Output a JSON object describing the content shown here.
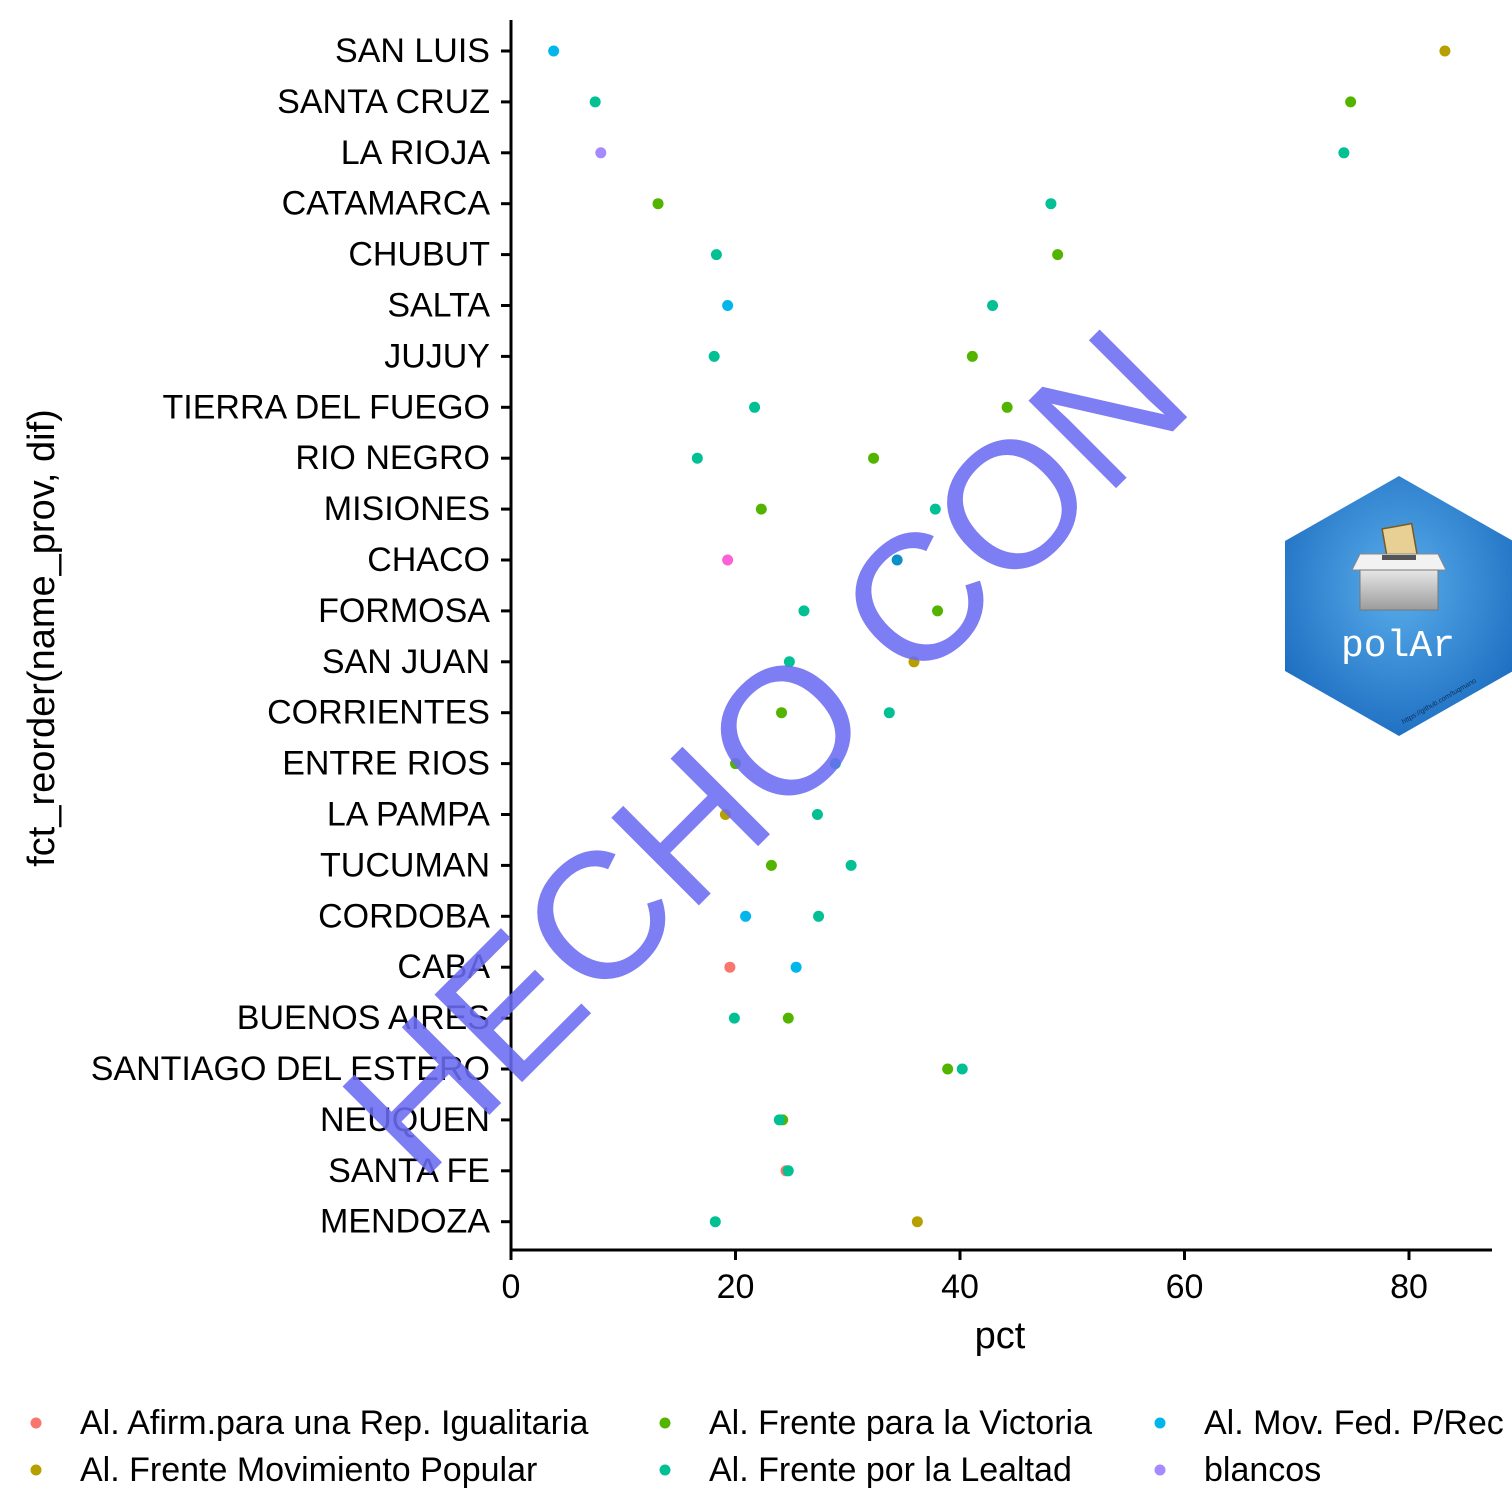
{
  "chart_data": {
    "type": "scatter",
    "title": "",
    "xlabel": "pct",
    "ylabel": "fct_reorder(name_prov, dif)",
    "xlim": [
      0,
      87
    ],
    "xticks": [
      0,
      20,
      40,
      60,
      80
    ],
    "grid": false,
    "legend_position": "bottom",
    "categories": [
      "SAN LUIS",
      "SANTA CRUZ",
      "LA RIOJA",
      "CATAMARCA",
      "CHUBUT",
      "SALTA",
      "JUJUY",
      "TIERRA DEL FUEGO",
      "RIO NEGRO",
      "MISIONES",
      "CHACO",
      "FORMOSA",
      "SAN JUAN",
      "CORRIENTES",
      "ENTRE RIOS",
      "LA PAMPA",
      "TUCUMAN",
      "CORDOBA",
      "CABA",
      "BUENOS AIRES",
      "SANTIAGO DEL ESTERO",
      "NEUQUEN",
      "SANTA FE",
      "MENDOZA"
    ],
    "series": [
      {
        "name": "Al. Afirm.para una Rep. Igualitaria",
        "color": "#F8766D",
        "points": [
          {
            "y": "CABA",
            "x": 19.5
          },
          {
            "y": "SANTA FE",
            "x": 24.5
          }
        ]
      },
      {
        "name": "Al. Frente Movimiento Popular",
        "color": "#B79F00",
        "points": [
          {
            "y": "SAN LUIS",
            "x": 83.2
          },
          {
            "y": "SAN JUAN",
            "x": 35.9
          },
          {
            "y": "LA PAMPA",
            "x": 19.1
          },
          {
            "y": "MENDOZA",
            "x": 36.2
          }
        ]
      },
      {
        "name": "Al. Frente para la Victoria",
        "color": "#53B400",
        "points": [
          {
            "y": "SANTA CRUZ",
            "x": 74.8
          },
          {
            "y": "CATAMARCA",
            "x": 13.1
          },
          {
            "y": "CHUBUT",
            "x": 48.7
          },
          {
            "y": "JUJUY",
            "x": 41.1
          },
          {
            "y": "TIERRA DEL FUEGO",
            "x": 44.2
          },
          {
            "y": "RIO NEGRO",
            "x": 32.3
          },
          {
            "y": "MISIONES",
            "x": 22.3
          },
          {
            "y": "FORMOSA",
            "x": 38.0
          },
          {
            "y": "CORRIENTES",
            "x": 24.1
          },
          {
            "y": "ENTRE RIOS",
            "x": 20.0
          },
          {
            "y": "TUCUMAN",
            "x": 23.2
          },
          {
            "y": "BUENOS AIRES",
            "x": 24.7
          },
          {
            "y": "SANTIAGO DEL ESTERO",
            "x": 38.9
          },
          {
            "y": "NEUQUEN",
            "x": 24.2
          }
        ]
      },
      {
        "name": "Al. Frente por la Lealtad",
        "color": "#00C094",
        "points": [
          {
            "y": "SANTA CRUZ",
            "x": 7.5
          },
          {
            "y": "LA RIOJA",
            "x": 74.2
          },
          {
            "y": "CATAMARCA",
            "x": 48.1
          },
          {
            "y": "CHUBUT",
            "x": 18.3
          },
          {
            "y": "SALTA",
            "x": 42.9
          },
          {
            "y": "JUJUY",
            "x": 18.1
          },
          {
            "y": "TIERRA DEL FUEGO",
            "x": 21.7
          },
          {
            "y": "RIO NEGRO",
            "x": 16.6
          },
          {
            "y": "MISIONES",
            "x": 37.8
          },
          {
            "y": "FORMOSA",
            "x": 26.1
          },
          {
            "y": "SAN JUAN",
            "x": 24.8
          },
          {
            "y": "CORRIENTES",
            "x": 33.7
          },
          {
            "y": "ENTRE RIOS",
            "x": 28.9
          },
          {
            "y": "LA PAMPA",
            "x": 27.3
          },
          {
            "y": "TUCUMAN",
            "x": 30.3
          },
          {
            "y": "CORDOBA",
            "x": 27.4
          },
          {
            "y": "BUENOS AIRES",
            "x": 19.9
          },
          {
            "y": "SANTIAGO DEL ESTERO",
            "x": 40.2
          },
          {
            "y": "NEUQUEN",
            "x": 23.9
          },
          {
            "y": "SANTA FE",
            "x": 24.7
          },
          {
            "y": "MENDOZA",
            "x": 18.2
          }
        ]
      },
      {
        "name": "Al. Mov. Fed. P/Rec",
        "color": "#00B6EB",
        "points": [
          {
            "y": "SAN LUIS",
            "x": 3.8
          },
          {
            "y": "SALTA",
            "x": 19.3
          },
          {
            "y": "CORDOBA",
            "x": 20.9
          },
          {
            "y": "CABA",
            "x": 25.4
          }
        ]
      },
      {
        "name": "blancos",
        "color": "#A58AFF",
        "points": [
          {
            "y": "LA RIOJA",
            "x": 8.0
          }
        ]
      },
      {
        "name": "",
        "color": "#FB61D7",
        "points": [
          {
            "y": "CHACO",
            "x": 19.3
          }
        ]
      },
      {
        "name": "",
        "color": "#0A8FC7",
        "points": [
          {
            "y": "CHACO",
            "x": 34.4
          }
        ]
      }
    ],
    "legend": [
      {
        "label": "Al. Afirm.para una Rep. Igualitaria",
        "color": "#F8766D"
      },
      {
        "label": "Al. Frente Movimiento Popular",
        "color": "#B79F00"
      },
      {
        "label": "Al. Frente para la Victoria",
        "color": "#53B400"
      },
      {
        "label": "Al. Frente por la Lealtad",
        "color": "#00C094"
      },
      {
        "label": "Al. Mov. Fed. P/Rec",
        "color": "#00B6EB"
      },
      {
        "label": "blancos",
        "color": "#A58AFF"
      }
    ],
    "watermark": "HECHO CON"
  },
  "logo": {
    "text": "polAr",
    "url": "https://github.com/tuqmano",
    "icon": "ballot-box-icon",
    "colors": {
      "dark": "#1e6fc2",
      "light": "#4ea3e6"
    }
  }
}
